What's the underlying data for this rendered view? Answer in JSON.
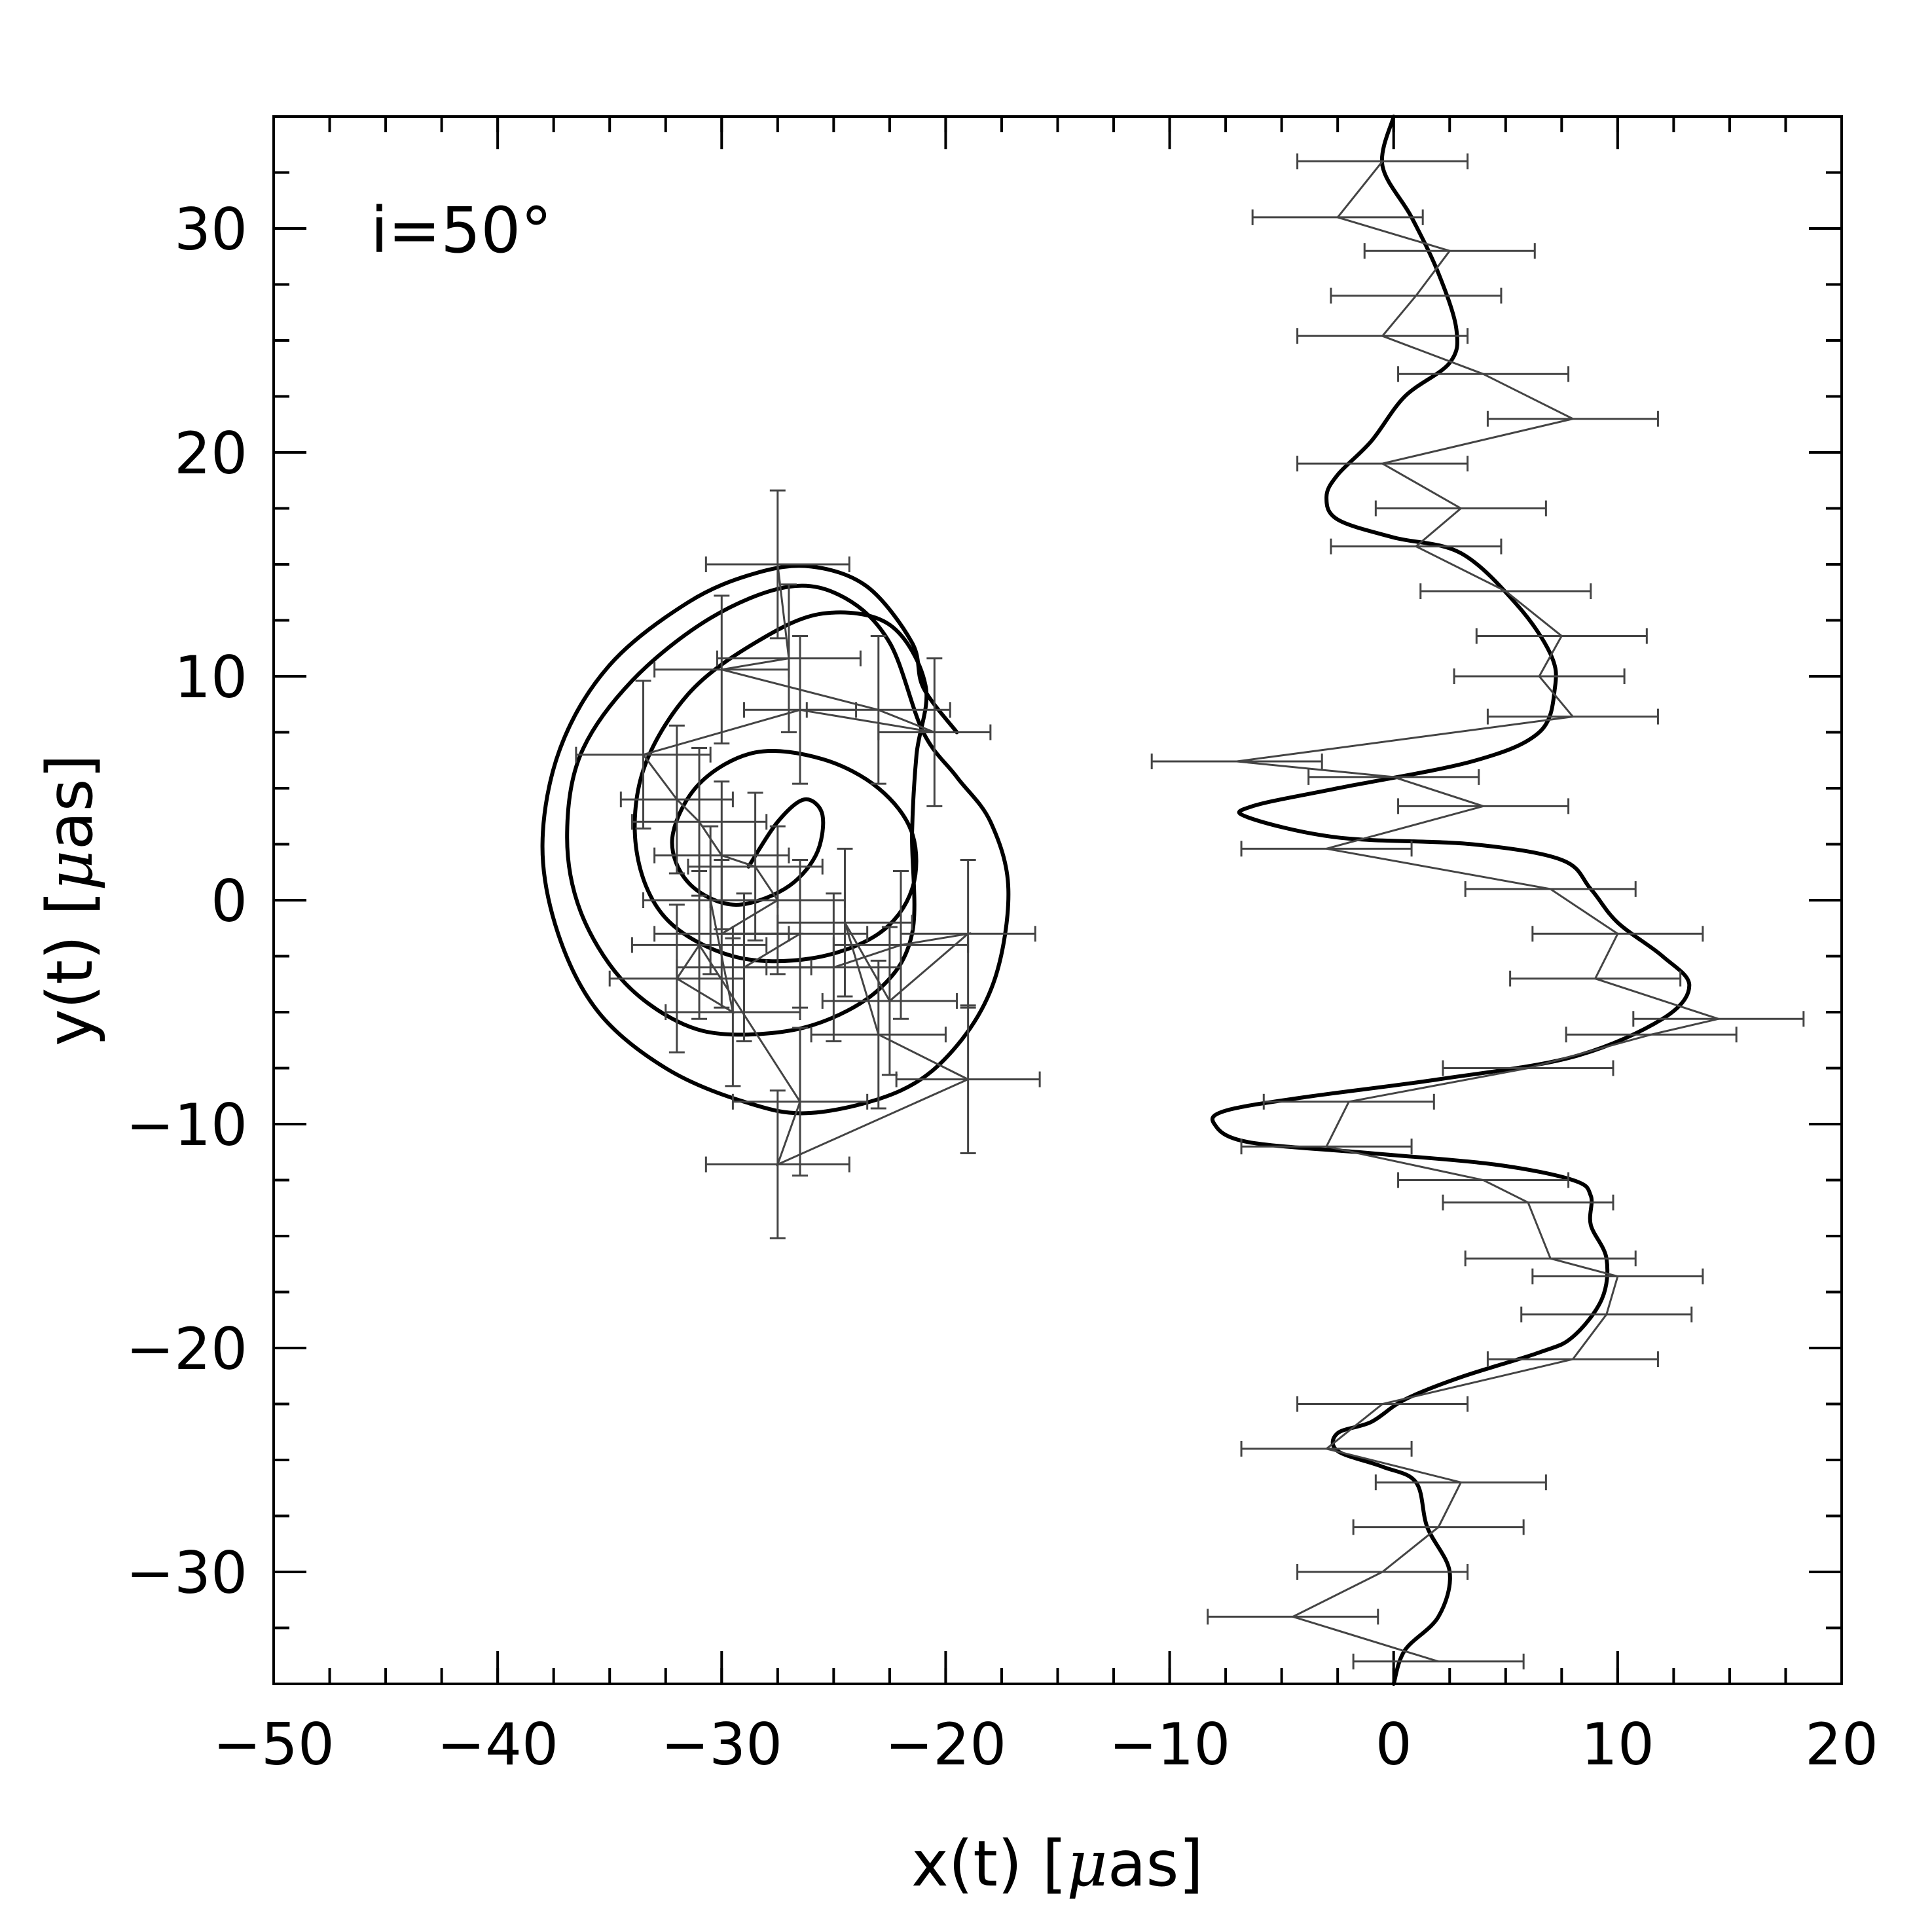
{
  "chart_data": {
    "type": "line",
    "annotation": "i=50°",
    "xlabel_parts": [
      "x(t)  [",
      "μ",
      "as]"
    ],
    "ylabel_parts": [
      "y(t)  [",
      "μ",
      "as]"
    ],
    "xlim": [
      -50,
      20
    ],
    "ylim": [
      -35,
      35
    ],
    "xticks": [
      -50,
      -40,
      -30,
      -20,
      -10,
      0,
      10,
      20
    ],
    "xtick_labels": [
      "−50",
      "−40",
      "−30",
      "−20",
      "−10",
      "0",
      "10",
      "20"
    ],
    "yticks": [
      -30,
      -20,
      -10,
      0,
      10,
      20,
      30
    ],
    "ytick_labels": [
      "−30",
      "−20",
      "−10",
      "0",
      "10",
      "20",
      "30"
    ],
    "minor_step": 2.5,
    "colors": {
      "model": "#000000",
      "data": "#444444"
    },
    "series": [
      {
        "kind": "model-spiral",
        "points": [
          [
            -28.8,
            1.5
          ],
          [
            -27.5,
            3.5
          ],
          [
            -26.3,
            4.5
          ],
          [
            -25.5,
            3.8
          ],
          [
            -25.8,
            2.0
          ],
          [
            -27.2,
            0.5
          ],
          [
            -29.5,
            -0.2
          ],
          [
            -31.5,
            0.8
          ],
          [
            -32.2,
            2.8
          ],
          [
            -31.0,
            5.2
          ],
          [
            -28.5,
            6.6
          ],
          [
            -25.5,
            6.3
          ],
          [
            -23.0,
            5.0
          ],
          [
            -21.5,
            3.0
          ],
          [
            -21.5,
            0.5
          ],
          [
            -23.0,
            -1.5
          ],
          [
            -26.0,
            -2.6
          ],
          [
            -29.5,
            -2.5
          ],
          [
            -32.5,
            -0.8
          ],
          [
            -33.8,
            2.2
          ],
          [
            -33.5,
            5.8
          ],
          [
            -31.5,
            9.2
          ],
          [
            -28.5,
            11.5
          ],
          [
            -25.5,
            12.8
          ],
          [
            -22.5,
            12.3
          ],
          [
            -20.9,
            9.6
          ],
          [
            -21.3,
            6.5
          ],
          [
            -21.5,
            3.0
          ],
          [
            -21.5,
            -1.5
          ],
          [
            -23.0,
            -4.0
          ],
          [
            -26.0,
            -5.6
          ],
          [
            -29.5,
            -6.0
          ],
          [
            -32.0,
            -5.4
          ],
          [
            -34.5,
            -3.5
          ],
          [
            -36.3,
            -0.5
          ],
          [
            -36.9,
            2.8
          ],
          [
            -36.3,
            6.5
          ],
          [
            -34.0,
            9.8
          ],
          [
            -30.5,
            12.6
          ],
          [
            -27.0,
            14.0
          ],
          [
            -24.5,
            13.5
          ],
          [
            -22.5,
            11.5
          ],
          [
            -21.0,
            7.5
          ],
          [
            -19.5,
            5.5
          ],
          [
            -18.0,
            3.5
          ],
          [
            -17.2,
            0.5
          ],
          [
            -17.8,
            -3.5
          ],
          [
            -19.5,
            -6.5
          ],
          [
            -22.0,
            -8.5
          ],
          [
            -26.0,
            -9.5
          ],
          [
            -29.0,
            -9.0
          ],
          [
            -32.5,
            -7.5
          ],
          [
            -35.5,
            -5.0
          ],
          [
            -37.3,
            -1.5
          ],
          [
            -38.0,
            2.5
          ],
          [
            -37.2,
            6.8
          ],
          [
            -35.0,
            10.5
          ],
          [
            -31.5,
            13.3
          ],
          [
            -28.5,
            14.6
          ],
          [
            -26.0,
            14.9
          ],
          [
            -23.5,
            14.0
          ],
          [
            -21.5,
            11.5
          ],
          [
            -21.0,
            9.5
          ],
          [
            -19.5,
            7.5
          ]
        ]
      },
      {
        "kind": "model-wave",
        "points": [
          [
            0,
            35
          ],
          [
            -0.5,
            32.8
          ],
          [
            0.8,
            30.5
          ],
          [
            2.0,
            28.0
          ],
          [
            2.8,
            25.5
          ],
          [
            2.5,
            24.0
          ],
          [
            0.5,
            22.5
          ],
          [
            -1.0,
            20.5
          ],
          [
            -2.5,
            19.0
          ],
          [
            -3.0,
            18.0
          ],
          [
            -2.5,
            17.0
          ],
          [
            0,
            16.2
          ],
          [
            3.0,
            15.5
          ],
          [
            5.5,
            13.2
          ],
          [
            7.0,
            11.0
          ],
          [
            7.2,
            9.5
          ],
          [
            6.5,
            7.5
          ],
          [
            3.5,
            6.2
          ],
          [
            -2.5,
            5.0
          ],
          [
            -6.3,
            4.2
          ],
          [
            -6.5,
            3.7
          ],
          [
            -2.5,
            2.8
          ],
          [
            3.5,
            2.5
          ],
          [
            7.5,
            1.8
          ],
          [
            8.8,
            0.5
          ],
          [
            10.0,
            -1.0
          ],
          [
            12.0,
            -2.5
          ],
          [
            13.2,
            -3.8
          ],
          [
            12.0,
            -5.3
          ],
          [
            8.0,
            -7.0
          ],
          [
            2.0,
            -8.0
          ],
          [
            -4.0,
            -8.8
          ],
          [
            -7.5,
            -9.4
          ],
          [
            -8.0,
            -10.0
          ],
          [
            -6.5,
            -10.8
          ],
          [
            -1.0,
            -11.3
          ],
          [
            4.5,
            -11.8
          ],
          [
            8.0,
            -12.5
          ],
          [
            8.8,
            -13.2
          ],
          [
            8.8,
            -14.5
          ],
          [
            9.5,
            -16.0
          ],
          [
            9.3,
            -17.8
          ],
          [
            8.0,
            -19.5
          ],
          [
            6.5,
            -20.2
          ],
          [
            3.0,
            -21.3
          ],
          [
            0.5,
            -22.3
          ],
          [
            -1.0,
            -23.3
          ],
          [
            -2.5,
            -23.8
          ],
          [
            -2.5,
            -24.6
          ],
          [
            -0.5,
            -25.3
          ],
          [
            1.0,
            -26.0
          ],
          [
            1.5,
            -28.0
          ],
          [
            2.5,
            -30.0
          ],
          [
            2.0,
            -32.0
          ],
          [
            0.5,
            -33.5
          ],
          [
            0,
            -35
          ]
        ]
      },
      {
        "kind": "observations-right",
        "points": [
          [
            -0.5,
            33.0
          ],
          [
            -2.5,
            30.5
          ],
          [
            2.5,
            29.0
          ],
          [
            1.0,
            27.0
          ],
          [
            -0.5,
            25.2
          ],
          [
            4.0,
            23.5
          ],
          [
            8.0,
            21.5
          ],
          [
            -0.5,
            19.5
          ],
          [
            3.0,
            17.5
          ],
          [
            1.0,
            15.8
          ],
          [
            5.0,
            13.8
          ],
          [
            7.5,
            11.8
          ],
          [
            6.5,
            10.0
          ],
          [
            8.0,
            8.2
          ],
          [
            -7.0,
            6.2
          ],
          [
            0,
            5.5
          ],
          [
            4.0,
            4.2
          ],
          [
            -3.0,
            2.3
          ],
          [
            7.0,
            0.5
          ],
          [
            10.0,
            -1.5
          ],
          [
            9.0,
            -3.5
          ],
          [
            14.5,
            -5.3
          ],
          [
            11.5,
            -6.0
          ],
          [
            6.0,
            -7.5
          ],
          [
            -2.0,
            -9.0
          ],
          [
            -3.0,
            -11.0
          ],
          [
            4.0,
            -12.5
          ],
          [
            6.0,
            -13.5
          ],
          [
            7.0,
            -16.0
          ],
          [
            10.0,
            -16.8
          ],
          [
            9.5,
            -18.5
          ],
          [
            8.0,
            -20.5
          ],
          [
            -0.5,
            -22.5
          ],
          [
            -3.0,
            -24.5
          ],
          [
            3.0,
            -26.0
          ],
          [
            2.0,
            -28.0
          ],
          [
            -0.5,
            -30.0
          ],
          [
            -4.5,
            -32.0
          ],
          [
            2.0,
            -34.0
          ]
        ],
        "x_error": [
          3.8,
          3.8,
          3.8,
          3.8,
          3.8,
          3.8,
          3.8,
          3.8,
          3.8,
          3.8,
          3.8,
          3.8,
          3.8,
          3.8,
          3.8,
          3.8,
          3.8,
          3.8,
          3.8,
          3.8,
          3.8,
          3.8,
          3.8,
          3.8,
          3.8,
          3.8,
          3.8,
          3.8,
          3.8,
          3.8,
          3.8,
          3.8,
          3.8,
          3.8,
          3.8,
          3.8,
          3.8,
          3.8,
          3.8
        ]
      },
      {
        "kind": "observations-left",
        "points": [
          [
            -27.5,
            15.0
          ],
          [
            -27.0,
            10.8
          ],
          [
            -30.0,
            10.3
          ],
          [
            -23.0,
            8.5
          ],
          [
            -20.5,
            7.5
          ],
          [
            -26.5,
            8.5
          ],
          [
            -33.5,
            6.5
          ],
          [
            -32.0,
            4.5
          ],
          [
            -31.0,
            3.5
          ],
          [
            -30.0,
            2.0
          ],
          [
            -28.5,
            1.5
          ],
          [
            -27.5,
            0
          ],
          [
            -30.0,
            -1.5
          ],
          [
            -26.5,
            -1.5
          ],
          [
            -29.0,
            -3.0
          ],
          [
            -25.0,
            -3.0
          ],
          [
            -22.0,
            -2.0
          ],
          [
            -19.0,
            -1.5
          ],
          [
            -22.5,
            -4.5
          ],
          [
            -24.5,
            -1.0
          ],
          [
            -23.0,
            -6.0
          ],
          [
            -19.0,
            -8.0
          ],
          [
            -27.5,
            -11.8
          ],
          [
            -26.5,
            -9.0
          ],
          [
            -31.0,
            -2.0
          ],
          [
            -32.0,
            -3.5
          ],
          [
            -29.5,
            -5.0
          ],
          [
            -30.5,
            0
          ]
        ],
        "x_error": [
          3.2,
          3.2,
          3.0,
          3.2,
          2.5,
          2.5,
          3.0,
          2.5,
          3.0,
          3.0,
          3.0,
          3.0,
          3.0,
          3.0,
          3.0,
          3.0,
          3.0,
          3.0,
          3.0,
          3.0,
          3.0,
          3.2,
          3.2,
          3.0,
          3.0,
          3.0,
          3.0,
          3.0
        ],
        "y_error": [
          3.3,
          3.3,
          3.3,
          3.3,
          3.3,
          3.3,
          3.3,
          3.3,
          3.3,
          3.3,
          3.3,
          3.3,
          3.3,
          3.3,
          3.3,
          3.3,
          3.3,
          3.3,
          3.3,
          3.3,
          3.3,
          3.3,
          3.3,
          3.3,
          3.3,
          3.3,
          3.3,
          3.3
        ]
      }
    ]
  }
}
